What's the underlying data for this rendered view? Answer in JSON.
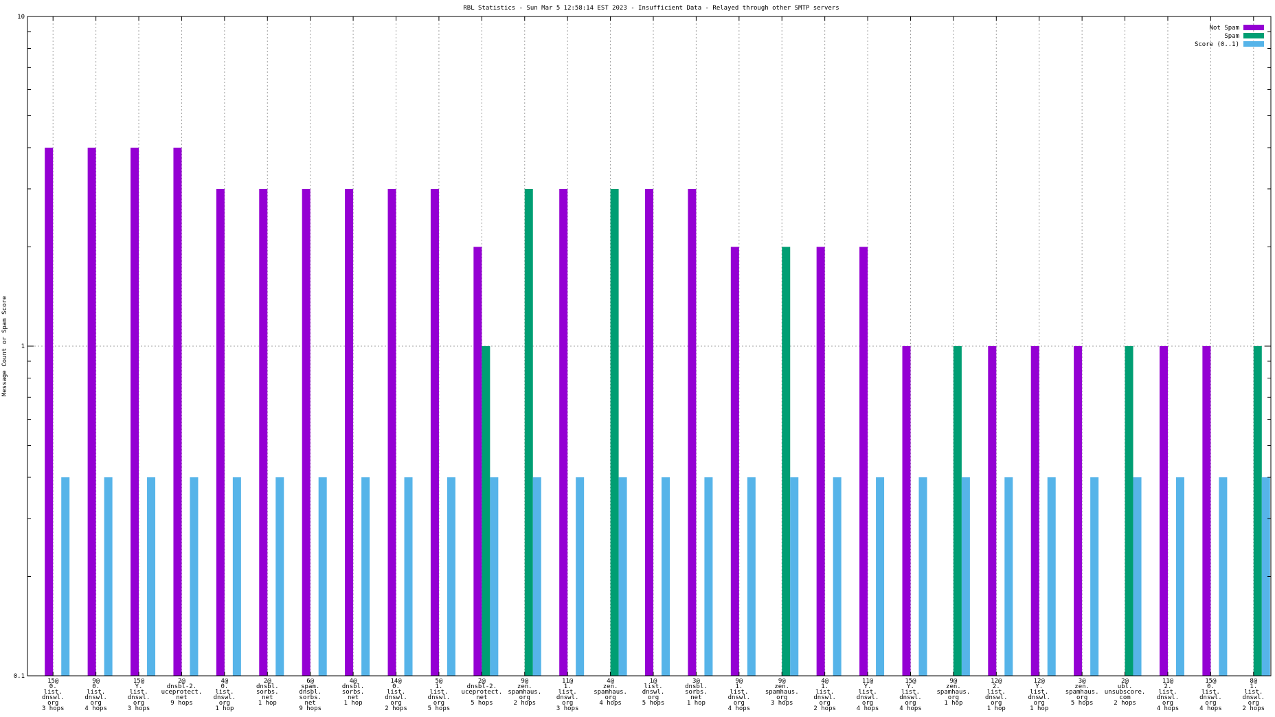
{
  "chart_data": {
    "type": "bar",
    "title": "RBL Statistics - Sun Mar  5 12:58:14 EST 2023 - Insufficient Data - Relayed through other SMTP servers",
    "xlabel": "",
    "ylabel": "Message Count or Spam Score",
    "yscale": "log",
    "ylim": [
      0.1,
      10
    ],
    "yticks": [
      "0.1",
      "1",
      "10"
    ],
    "grid": true,
    "legend_position": "top-right",
    "categories": [
      [
        "15@",
        "0.",
        "list.",
        "dnswl.",
        "org",
        "3 hops"
      ],
      [
        "9@",
        "0.",
        "list.",
        "dnswl.",
        "org",
        "4 hops"
      ],
      [
        "15@",
        "Y.",
        "list.",
        "dnswl.",
        "org",
        "3 hops"
      ],
      [
        "2@",
        "dnsbl-2.",
        "uceprotect.",
        "net",
        "9 hops"
      ],
      [
        "4@",
        "0.",
        "list.",
        "dnswl.",
        "org",
        "1 hop"
      ],
      [
        "2@",
        "dnsbl.",
        "sorbs.",
        "net",
        "1 hop"
      ],
      [
        "6@",
        "spam.",
        "dnsbl.",
        "sorbs.",
        "net",
        "9 hops"
      ],
      [
        "4@",
        "dnsbl.",
        "sorbs.",
        "net",
        "1 hop"
      ],
      [
        "14@",
        "0.",
        "list.",
        "dnswl.",
        "org",
        "2 hops"
      ],
      [
        "5@",
        "1.",
        "list.",
        "dnswl.",
        "org",
        "5 hops"
      ],
      [
        "2@",
        "dnsbl-2.",
        "uceprotect.",
        "net",
        "5 hops"
      ],
      [
        "9@",
        "zen.",
        "spamhaus.",
        "org",
        "2 hops"
      ],
      [
        "11@",
        "1.",
        "list.",
        "dnswl.",
        "org",
        "3 hops"
      ],
      [
        "4@",
        "zen.",
        "spamhaus.",
        "org",
        "4 hops"
      ],
      [
        "1@",
        "list.",
        "dnswl.",
        "org",
        "5 hops"
      ],
      [
        "3@",
        "dnsbl.",
        "sorbs.",
        "net",
        "1 hop"
      ],
      [
        "9@",
        "1.",
        "list.",
        "dnswl.",
        "org",
        "4 hops"
      ],
      [
        "9@",
        "zen.",
        "spamhaus.",
        "org",
        "3 hops"
      ],
      [
        "4@",
        "1.",
        "list.",
        "dnswl.",
        "org",
        "2 hops"
      ],
      [
        "11@",
        "Y.",
        "list.",
        "dnswl.",
        "org",
        "4 hops"
      ],
      [
        "15@",
        "Y.",
        "list.",
        "dnswl.",
        "org",
        "4 hops"
      ],
      [
        "9@",
        "zen.",
        "spamhaus.",
        "org",
        "1 hop"
      ],
      [
        "12@",
        "2.",
        "list.",
        "dnswl.",
        "org",
        "1 hop"
      ],
      [
        "12@",
        "Y.",
        "list.",
        "dnswl.",
        "org",
        "1 hop"
      ],
      [
        "3@",
        "zen.",
        "spamhaus.",
        "org",
        "5 hops"
      ],
      [
        "2@",
        "ubl.",
        "unsubscore.",
        "com",
        "2 hops"
      ],
      [
        "11@",
        "2.",
        "list.",
        "dnswl.",
        "org",
        "4 hops"
      ],
      [
        "15@",
        "0.",
        "list.",
        "dnswl.",
        "org",
        "4 hops"
      ],
      [
        "8@",
        "1.",
        "list.",
        "dnswl.",
        "org",
        "2 hops"
      ]
    ],
    "series": [
      {
        "name": "Not Spam",
        "color": "#9400d3",
        "values": [
          4,
          4,
          4,
          4,
          3,
          3,
          3,
          3,
          3,
          3,
          2,
          null,
          3,
          null,
          3,
          3,
          2,
          null,
          2,
          2,
          1,
          null,
          1,
          1,
          1,
          null,
          1,
          1,
          null
        ]
      },
      {
        "name": "Spam",
        "color": "#009e73",
        "values": [
          null,
          null,
          null,
          null,
          null,
          null,
          null,
          null,
          null,
          null,
          1,
          3,
          null,
          3,
          null,
          null,
          null,
          2,
          null,
          null,
          null,
          1,
          null,
          null,
          null,
          1,
          null,
          null,
          1
        ]
      },
      {
        "name": "Score (0..1)",
        "color": "#56b4e9",
        "values": [
          0.4,
          0.4,
          0.4,
          0.4,
          0.4,
          0.4,
          0.4,
          0.4,
          0.4,
          0.4,
          0.4,
          0.4,
          0.4,
          0.4,
          0.4,
          0.4,
          0.4,
          0.4,
          0.4,
          0.4,
          0.4,
          0.4,
          0.4,
          0.4,
          0.4,
          0.4,
          0.4,
          0.4,
          0.4
        ]
      }
    ]
  }
}
